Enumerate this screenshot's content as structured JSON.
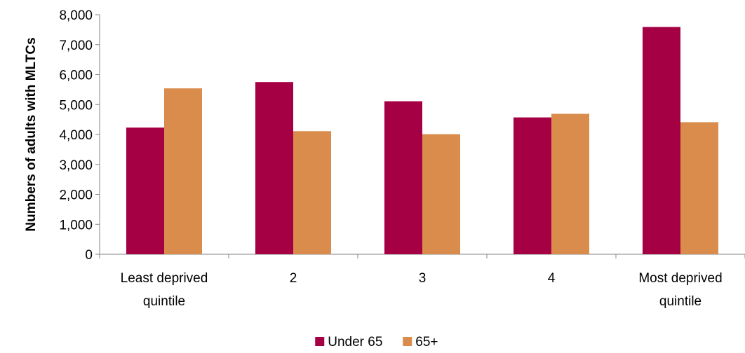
{
  "chart_data": {
    "type": "bar",
    "categories": [
      [
        "Least deprived",
        "quintile"
      ],
      [
        "2"
      ],
      [
        "3"
      ],
      [
        "4"
      ],
      [
        "Most deprived",
        "quintile"
      ]
    ],
    "series": [
      {
        "name": "Under 65",
        "values": [
          4230,
          5750,
          5110,
          4570,
          7590
        ],
        "color": "#A50044"
      },
      {
        "name": "65+",
        "values": [
          5540,
          4110,
          4010,
          4690,
          4410
        ],
        "color": "#D98C4C"
      }
    ],
    "ylabel": "Numbers of adults with MLTCs",
    "ylim": [
      0,
      8000
    ],
    "yticks": [
      "0",
      "1,000",
      "2,000",
      "3,000",
      "4,000",
      "5,000",
      "6,000",
      "7,000",
      "8,000"
    ],
    "ytick_values": [
      0,
      1000,
      2000,
      3000,
      4000,
      5000,
      6000,
      7000,
      8000
    ],
    "grid": false,
    "legend_position": "bottom"
  }
}
